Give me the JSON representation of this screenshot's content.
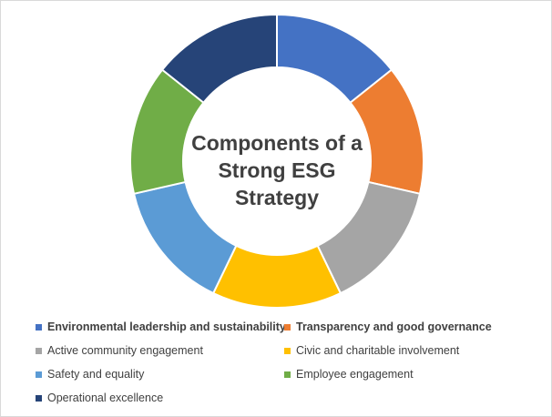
{
  "chart_data": {
    "type": "pie",
    "donut": true,
    "title": "Components of a Strong ESG Strategy",
    "title_lines": [
      "Components of a",
      "Strong ESG Strategy"
    ],
    "legend_position": "bottom",
    "slices": [
      {
        "label": "Environmental leadership and sustainability",
        "value": 1,
        "color": "#4472C4",
        "bold": true
      },
      {
        "label": "Transparency and good governance",
        "value": 1,
        "color": "#ED7D31",
        "bold": true
      },
      {
        "label": "Active community engagement",
        "value": 1,
        "color": "#A5A5A5",
        "bold": false
      },
      {
        "label": "Civic and charitable involvement",
        "value": 1,
        "color": "#FFC000",
        "bold": false
      },
      {
        "label": "Safety and equality",
        "value": 1,
        "color": "#5B9BD5",
        "bold": false
      },
      {
        "label": "Employee engagement",
        "value": 1,
        "color": "#70AD47",
        "bold": false
      },
      {
        "label": "Operational excellence",
        "value": 1,
        "color": "#264478",
        "bold": false
      }
    ]
  }
}
